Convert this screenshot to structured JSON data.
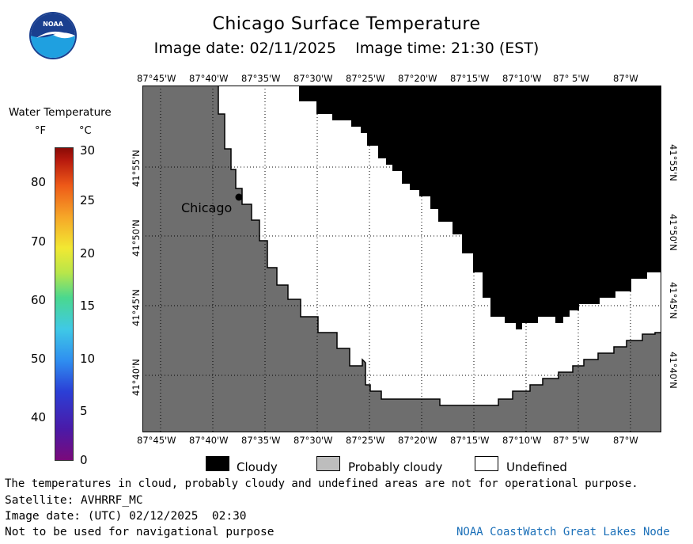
{
  "header": {
    "title": "Chicago Surface Temperature",
    "subtitle": "Image date: 02/11/2025    Image time: 21:30 (EST)"
  },
  "logo": {
    "text": "NOAA",
    "colors": {
      "outer": "#ffffff",
      "ring": "#1a3f8f",
      "inner": "#1fa0e0"
    }
  },
  "color_scale": {
    "title": "Water Temperature",
    "unit_f": "°F",
    "unit_c": "°C",
    "f_labels": [
      "80",
      "70",
      "60",
      "50",
      "40"
    ],
    "c_labels": [
      "30",
      "25",
      "20",
      "15",
      "10",
      "5",
      "0"
    ]
  },
  "map": {
    "longitudes": [
      "87°45'W",
      "87°40'W",
      "87°35'W",
      "87°30'W",
      "87°25'W",
      "87°20'W",
      "87°15'W",
      "87°10'W",
      "87° 5'W",
      "87°W"
    ],
    "latitudes": [
      "41°55'N",
      "41°50'N",
      "41°45'N",
      "41°40'N"
    ],
    "city": "Chicago",
    "colors": {
      "land": "#6e6e6e",
      "cloudy": "#000000",
      "undefined": "#ffffff",
      "probably_cloudy": "#bdbdbd"
    }
  },
  "legend": {
    "cloudy": "Cloudy",
    "probably_cloudy": "Probably cloudy",
    "undefined": "Undefined"
  },
  "footer": {
    "disclaimer": "The temperatures in cloud, probably cloudy and undefined areas are not for operational purpose.",
    "satellite": "Satellite: AVHRRF_MC",
    "utc_date": "Image date: (UTC) 02/12/2025  02:30",
    "navigation": "Not to be used for navigational purpose",
    "node": "NOAA CoastWatch Great Lakes Node"
  }
}
